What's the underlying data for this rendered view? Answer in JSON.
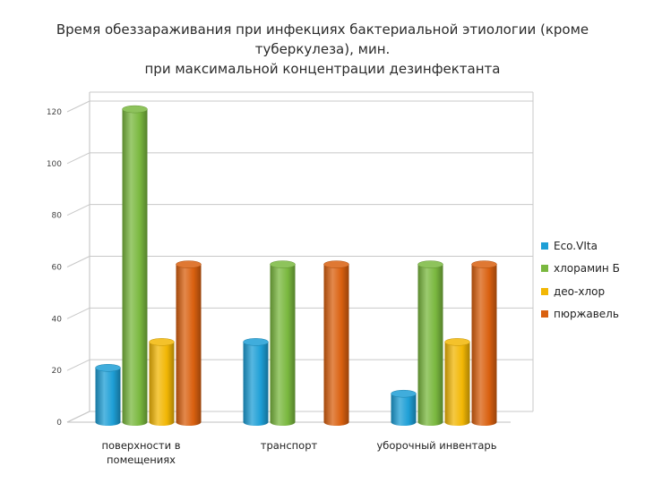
{
  "chart_data": {
    "type": "bar",
    "title_lines": [
      "Время обеззараживания при инфекциях бактериальной этиологии (кроме",
      "туберкулеза), мин.",
      "при максимальной концентрации дезинфектанта"
    ],
    "categories": [
      [
        "поверхности в",
        "помещениях"
      ],
      [
        "транспорт"
      ],
      [
        "уборочный инвентарь"
      ]
    ],
    "series": [
      {
        "name": "Eco.VIta",
        "color": "#1e9fd6",
        "values": [
          21,
          31,
          11
        ]
      },
      {
        "name": "хлорамин Б",
        "color": "#7ab83f",
        "values": [
          121,
          61,
          61
        ]
      },
      {
        "name": "део-хлор",
        "color": "#f2b705",
        "values": [
          31,
          null,
          31
        ]
      },
      {
        "name": "пюржавель",
        "color": "#d9600f",
        "values": [
          61,
          61,
          61
        ]
      }
    ],
    "yticks": [
      "0",
      "20",
      "40",
      "60",
      "80",
      "100",
      "120"
    ],
    "ylim": [
      0,
      120
    ],
    "grid": true,
    "legend_position": "right"
  }
}
